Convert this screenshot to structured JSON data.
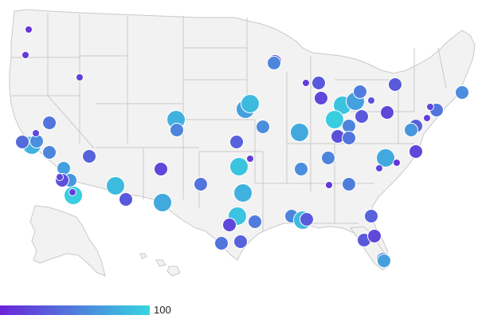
{
  "map": {
    "land_color": "#f2f2f2",
    "border_color": "#c9c9c9",
    "marker_stroke": "#ffffff"
  },
  "legend": {
    "max_label": "100",
    "color_low": "#6a23d9",
    "color_high": "#35d6e0"
  },
  "markers": [
    {
      "name": "pt",
      "v": 10,
      "sz": "s"
    },
    {
      "name": "pt",
      "v": 12,
      "sz": "s"
    },
    {
      "name": "pt",
      "v": 15,
      "sz": "s"
    },
    {
      "name": "pt",
      "v": 45,
      "sz": "m"
    },
    {
      "name": "pt",
      "v": 80,
      "sz": "l"
    },
    {
      "name": "pt",
      "v": 60,
      "sz": "m"
    },
    {
      "name": "pt",
      "v": 20,
      "sz": "s"
    },
    {
      "name": "pt",
      "v": 40,
      "sz": "m"
    },
    {
      "name": "pt",
      "v": 55,
      "sz": "m"
    },
    {
      "name": "pt",
      "v": 70,
      "sz": "m"
    },
    {
      "name": "pt",
      "v": 95,
      "sz": "l"
    },
    {
      "name": "pt",
      "v": 15,
      "sz": "s"
    },
    {
      "name": "pt",
      "v": 65,
      "sz": "m"
    },
    {
      "name": "pt",
      "v": 25,
      "sz": "m"
    },
    {
      "name": "pt",
      "v": 20,
      "sz": "s"
    },
    {
      "name": "pt",
      "v": 35,
      "sz": "m"
    },
    {
      "name": "pt",
      "v": 70,
      "sz": "m"
    },
    {
      "name": "pt",
      "v": 85,
      "sz": "l"
    },
    {
      "name": "pt",
      "v": 30,
      "sz": "m"
    },
    {
      "name": "pt",
      "v": 20,
      "sz": "m"
    },
    {
      "name": "pt",
      "v": 75,
      "sz": "l"
    },
    {
      "name": "pt",
      "v": 45,
      "sz": "m"
    },
    {
      "name": "pt",
      "v": 40,
      "sz": "m"
    },
    {
      "name": "pt",
      "v": 80,
      "sz": "l"
    },
    {
      "name": "pt",
      "v": 55,
      "sz": "m"
    },
    {
      "name": "pt",
      "v": 35,
      "sz": "m"
    },
    {
      "name": "pt",
      "v": 90,
      "sz": "l"
    },
    {
      "name": "pt",
      "v": 15,
      "sz": "s"
    },
    {
      "name": "pt",
      "v": 60,
      "sz": "m"
    },
    {
      "name": "pt",
      "v": 80,
      "sz": "l"
    },
    {
      "name": "pt",
      "v": 90,
      "sz": "l"
    },
    {
      "name": "pt",
      "v": 50,
      "sz": "m"
    },
    {
      "name": "pt",
      "v": 20,
      "sz": "m"
    },
    {
      "name": "pt",
      "v": 45,
      "sz": "m"
    },
    {
      "name": "pt",
      "v": 35,
      "sz": "m"
    },
    {
      "name": "pt",
      "v": 20,
      "sz": "m"
    },
    {
      "name": "pt",
      "v": 55,
      "sz": "m"
    },
    {
      "name": "pt",
      "v": 70,
      "sz": "l"
    },
    {
      "name": "pt",
      "v": 85,
      "sz": "l"
    },
    {
      "name": "pt",
      "v": 60,
      "sz": "m"
    },
    {
      "name": "pt",
      "v": 75,
      "sz": "l"
    },
    {
      "name": "pt",
      "v": 15,
      "sz": "s"
    },
    {
      "name": "pt",
      "v": 30,
      "sz": "m"
    },
    {
      "name": "pt",
      "v": 20,
      "sz": "m"
    },
    {
      "name": "pt",
      "v": 60,
      "sz": "m"
    },
    {
      "name": "pt",
      "v": 55,
      "sz": "m"
    },
    {
      "name": "pt",
      "v": 20,
      "sz": "m"
    },
    {
      "name": "pt",
      "v": 10,
      "sz": "s"
    },
    {
      "name": "pt",
      "v": 90,
      "sz": "l"
    },
    {
      "name": "pt",
      "v": 70,
      "sz": "l"
    },
    {
      "name": "pt",
      "v": 25,
      "sz": "s"
    },
    {
      "name": "pt",
      "v": 50,
      "sz": "m"
    },
    {
      "name": "pt",
      "v": 30,
      "sz": "m"
    },
    {
      "name": "pt",
      "v": 20,
      "sz": "m"
    },
    {
      "name": "pt",
      "v": 60,
      "sz": "m"
    },
    {
      "name": "pt",
      "v": 45,
      "sz": "m"
    },
    {
      "name": "pt",
      "v": 20,
      "sz": "s"
    },
    {
      "name": "pt",
      "v": 15,
      "sz": "s"
    },
    {
      "name": "pt",
      "v": 35,
      "sz": "m"
    },
    {
      "name": "pt",
      "v": 20,
      "sz": "m"
    },
    {
      "name": "pt",
      "v": 65,
      "sz": "m"
    },
    {
      "name": "pt",
      "v": 75,
      "sz": "l"
    },
    {
      "name": "pt",
      "v": 10,
      "sz": "s"
    },
    {
      "name": "pt",
      "v": 20,
      "sz": "s"
    },
    {
      "name": "pt",
      "v": 95,
      "sz": "l"
    },
    {
      "name": "pt",
      "v": 55,
      "sz": "m"
    },
    {
      "name": "pt",
      "v": 30,
      "sz": "m"
    },
    {
      "name": "pt",
      "v": 25,
      "sz": "m"
    },
    {
      "name": "pt",
      "v": 45,
      "sz": "m"
    },
    {
      "name": "pt",
      "v": 55,
      "sz": "m"
    },
    {
      "name": "pt",
      "v": 50,
      "sz": "m"
    },
    {
      "name": "pt",
      "v": 35,
      "sz": "m"
    },
    {
      "name": "pt",
      "v": 30,
      "sz": "m"
    },
    {
      "name": "pt",
      "v": 20,
      "sz": "m"
    },
    {
      "name": "pt",
      "v": 45,
      "sz": "m"
    },
    {
      "name": "pt",
      "v": 70,
      "sz": "m"
    },
    {
      "name": "pt",
      "v": 85,
      "sz": "l"
    },
    {
      "name": "pt",
      "v": 20,
      "sz": "s"
    },
    {
      "name": "pt",
      "v": 30,
      "sz": "m"
    }
  ]
}
